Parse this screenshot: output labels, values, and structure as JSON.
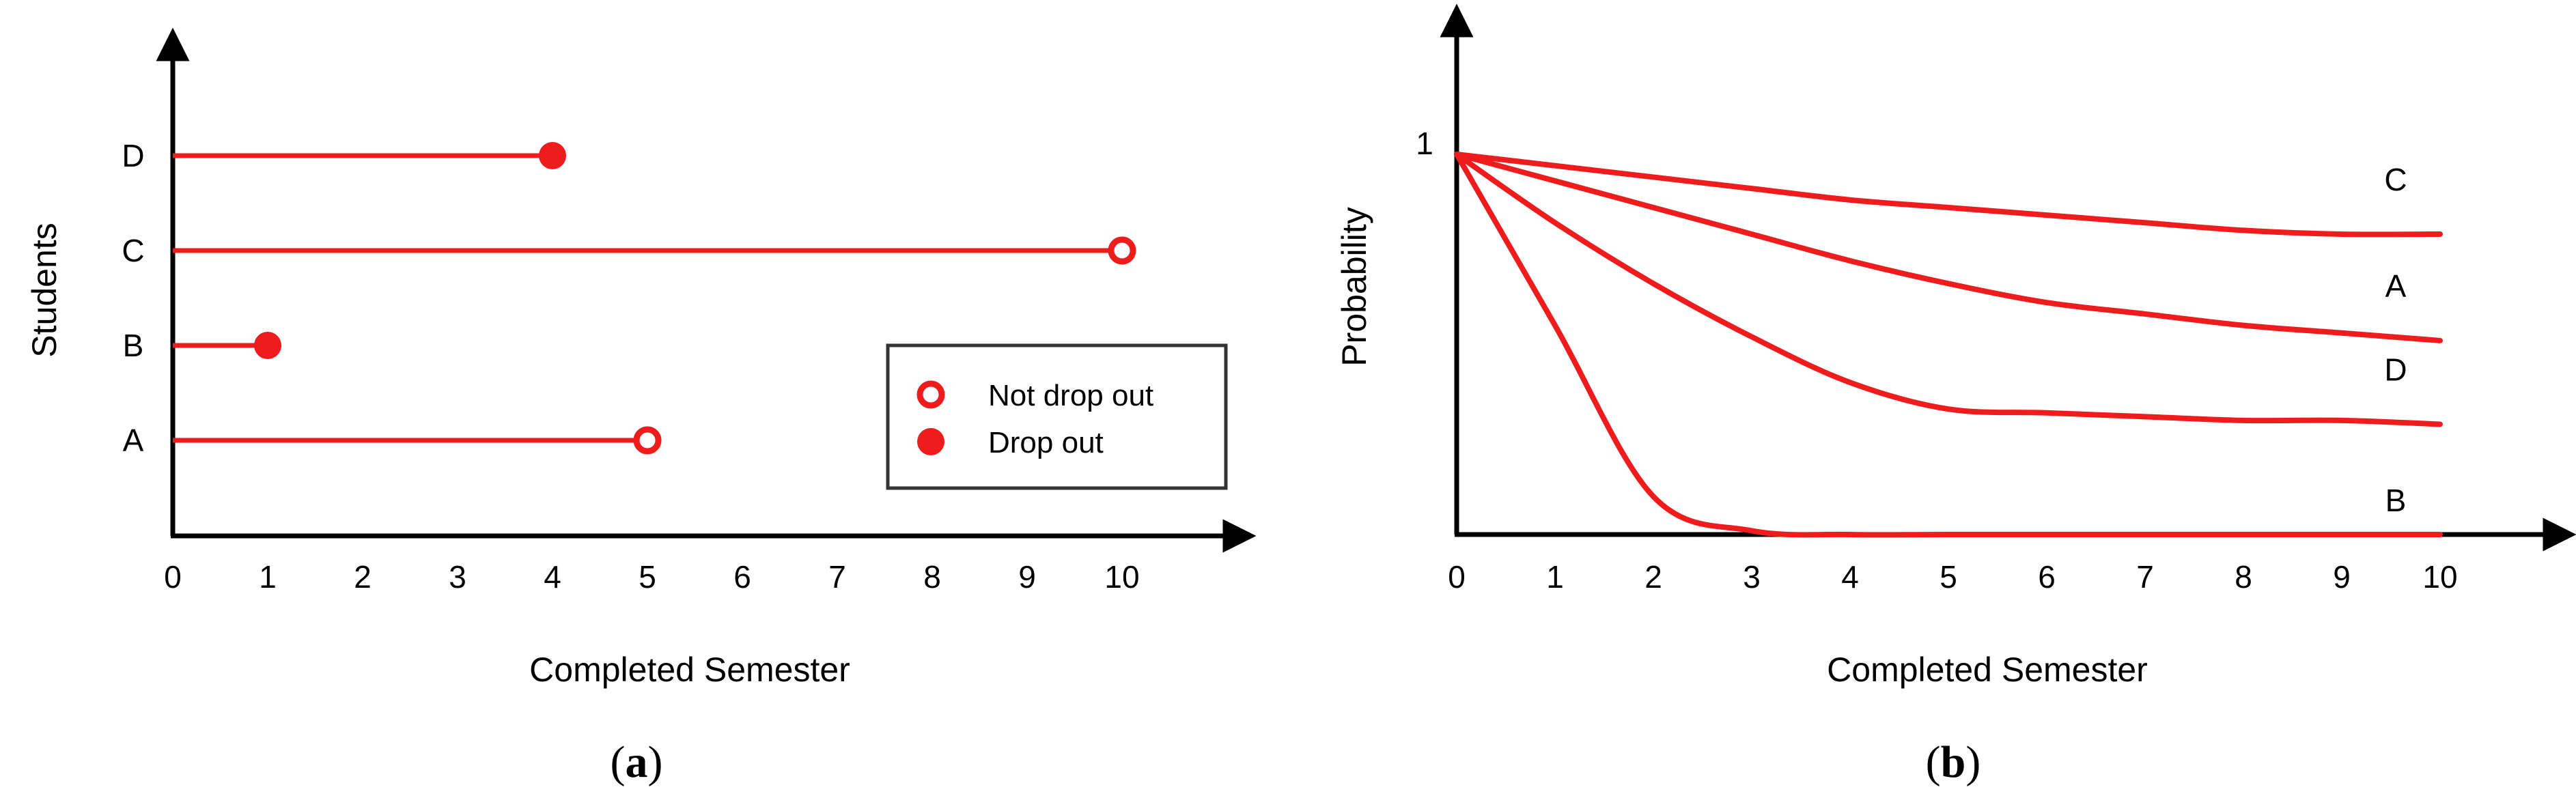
{
  "colors": {
    "series": "#ee1c1c",
    "axis": "#000000",
    "legend_border": "#333333"
  },
  "chart_data": [
    {
      "panel": "a",
      "type": "scatter",
      "caption": "a",
      "xlabel": "Completed Semester",
      "ylabel": "Students",
      "x_ticks": [
        "0",
        "1",
        "2",
        "3",
        "4",
        "5",
        "6",
        "7",
        "8",
        "9",
        "10"
      ],
      "xlim": [
        0,
        11
      ],
      "y_categories": [
        "A",
        "B",
        "C",
        "D"
      ],
      "legend": {
        "position": "bottom-right",
        "entries": [
          {
            "label": "Not drop out",
            "marker": "open-circle"
          },
          {
            "label": "Drop out",
            "marker": "filled-circle"
          }
        ]
      },
      "segments": [
        {
          "student": "A",
          "start": 0,
          "end": 5,
          "status": "not-drop-out"
        },
        {
          "student": "B",
          "start": 0,
          "end": 1,
          "status": "drop-out"
        },
        {
          "student": "C",
          "start": 0,
          "end": 10,
          "status": "not-drop-out"
        },
        {
          "student": "D",
          "start": 0,
          "end": 4,
          "status": "drop-out"
        }
      ]
    },
    {
      "panel": "b",
      "type": "line",
      "caption": "b",
      "xlabel": "Completed Semester",
      "ylabel": "Probability",
      "x_ticks": [
        "0",
        "1",
        "2",
        "3",
        "4",
        "5",
        "6",
        "7",
        "8",
        "9",
        "10"
      ],
      "y_tick_label": "1",
      "xlim": [
        0,
        11
      ],
      "ylim": [
        0,
        1.1
      ],
      "x": [
        0,
        1,
        2,
        3,
        4,
        5,
        6,
        7,
        8,
        9,
        10
      ],
      "series": [
        {
          "name": "C",
          "values": [
            1.0,
            0.97,
            0.94,
            0.91,
            0.88,
            0.86,
            0.84,
            0.82,
            0.8,
            0.79,
            0.79
          ]
        },
        {
          "name": "A",
          "values": [
            1.0,
            0.93,
            0.86,
            0.79,
            0.72,
            0.66,
            0.61,
            0.58,
            0.55,
            0.53,
            0.51
          ]
        },
        {
          "name": "D",
          "values": [
            1.0,
            0.82,
            0.66,
            0.52,
            0.4,
            0.33,
            0.32,
            0.31,
            0.3,
            0.3,
            0.29
          ]
        },
        {
          "name": "B",
          "values": [
            1.0,
            0.55,
            0.1,
            0.01,
            0.0,
            0.0,
            0.0,
            0.0,
            0.0,
            0.0,
            0.0
          ]
        }
      ]
    }
  ]
}
